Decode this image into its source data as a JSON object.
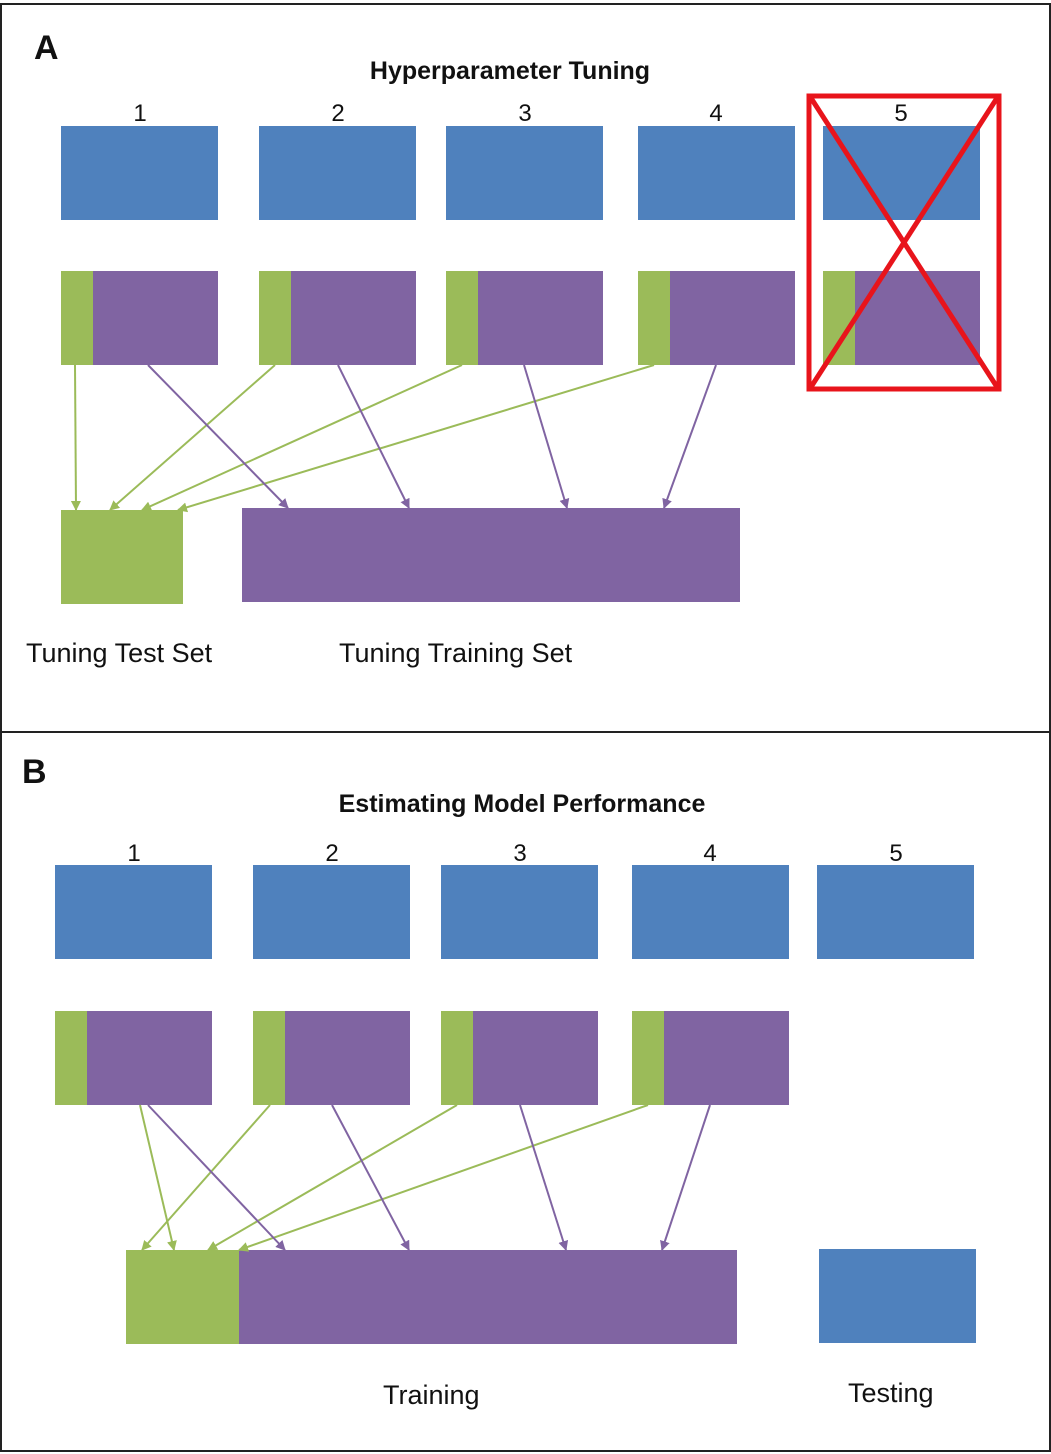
{
  "panelA": {
    "letter": "A",
    "title": "Hyperparameter Tuning",
    "folds": [
      "1",
      "2",
      "3",
      "4",
      "5"
    ],
    "excluded_fold": "5",
    "labels": {
      "test": "Tuning Test Set",
      "train": "Tuning Training Set"
    }
  },
  "panelB": {
    "letter": "B",
    "title": "Estimating Model Performance",
    "folds": [
      "1",
      "2",
      "3",
      "4",
      "5"
    ],
    "labels": {
      "train": "Training",
      "test": "Testing"
    }
  },
  "colors": {
    "data_block": "#4f81bd",
    "test_split": "#9bbb59",
    "train_split": "#8064a2",
    "exclusion_mark": "#e8141b",
    "border": "#222222"
  }
}
